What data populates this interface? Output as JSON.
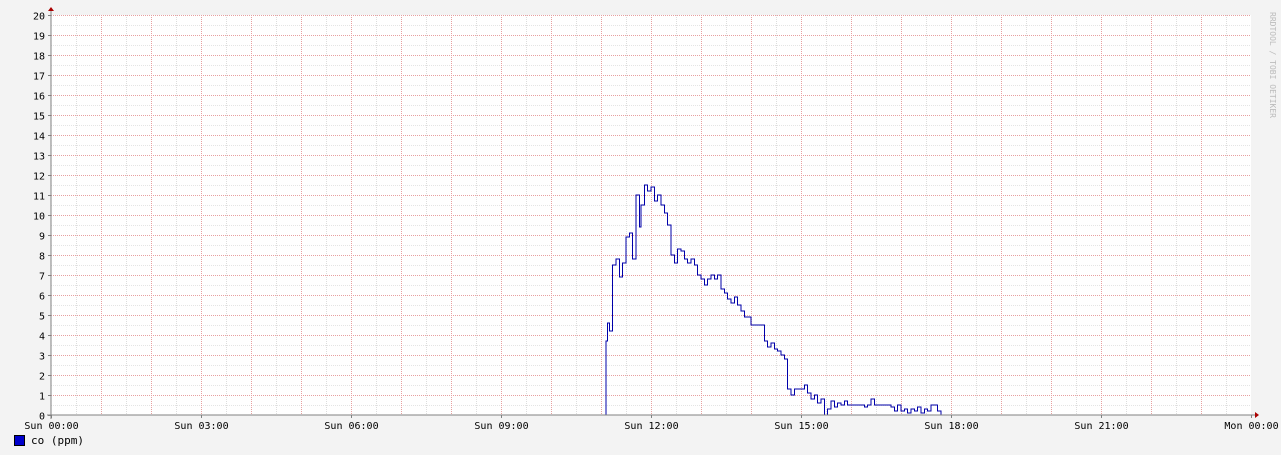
{
  "watermark": "RRDTOOL / TOBI OETIKER",
  "legend": {
    "label": "co (ppm)"
  },
  "colors": {
    "background": "#f3f3f3",
    "plot": "#ffffff",
    "line": "#0000aa",
    "grid_minor": "#dddddd",
    "grid_major": "#e7a0a0",
    "axis": "#808080",
    "arrow": "#aa0000"
  },
  "chart_data": {
    "type": "line",
    "step": true,
    "xlabel": "",
    "ylabel": "",
    "xlim": [
      0,
      24
    ],
    "ylim": [
      0,
      20
    ],
    "grid": true,
    "legend_position": "bottom-left",
    "x_ticks": [
      {
        "hour": 0,
        "label": "Sun 00:00"
      },
      {
        "hour": 3,
        "label": "Sun 03:00"
      },
      {
        "hour": 6,
        "label": "Sun 06:00"
      },
      {
        "hour": 9,
        "label": "Sun 09:00"
      },
      {
        "hour": 12,
        "label": "Sun 12:00"
      },
      {
        "hour": 15,
        "label": "Sun 15:00"
      },
      {
        "hour": 18,
        "label": "Sun 18:00"
      },
      {
        "hour": 21,
        "label": "Sun 21:00"
      },
      {
        "hour": 24,
        "label": "Mon 00:00"
      }
    ],
    "y_ticks": [
      0,
      1,
      2,
      3,
      4,
      5,
      6,
      7,
      8,
      9,
      10,
      11,
      12,
      13,
      14,
      15,
      16,
      17,
      18,
      19,
      20
    ],
    "series": [
      {
        "name": "co (ppm)",
        "x": [
          1.4,
          11.1,
          11.13,
          11.17,
          11.23,
          11.3,
          11.37,
          11.43,
          11.5,
          11.57,
          11.63,
          11.7,
          11.77,
          11.8,
          11.87,
          11.93,
          12.0,
          12.07,
          12.13,
          12.2,
          12.27,
          12.33,
          12.4,
          12.47,
          12.53,
          12.6,
          12.67,
          12.73,
          12.8,
          12.87,
          12.93,
          13.0,
          13.07,
          13.13,
          13.2,
          13.27,
          13.33,
          13.4,
          13.47,
          13.53,
          13.6,
          13.67,
          13.73,
          13.8,
          13.87,
          14.0,
          14.27,
          14.33,
          14.4,
          14.47,
          14.53,
          14.6,
          14.67,
          14.73,
          14.8,
          14.87,
          15.07,
          15.13,
          15.2,
          15.27,
          15.33,
          15.4,
          15.47,
          15.53,
          15.6,
          15.67,
          15.73,
          15.8,
          15.87,
          15.93,
          16.2,
          16.27,
          16.33,
          16.4,
          16.47,
          16.53,
          16.6,
          16.67,
          16.73,
          16.8,
          16.87,
          16.93,
          17.0,
          17.07,
          17.13,
          17.2,
          17.27,
          17.33,
          17.4,
          17.47,
          17.53,
          17.6,
          17.67,
          17.73,
          17.8
        ],
        "y": [
          0,
          3.7,
          4.6,
          4.2,
          7.5,
          7.8,
          6.9,
          7.6,
          8.9,
          9.1,
          7.8,
          11.0,
          9.4,
          10.5,
          11.5,
          11.2,
          11.4,
          10.7,
          11.0,
          10.5,
          10.1,
          9.5,
          8.0,
          7.6,
          8.3,
          8.2,
          7.8,
          7.6,
          7.8,
          7.5,
          7.0,
          6.8,
          6.5,
          6.8,
          7.0,
          6.8,
          7.0,
          6.3,
          6.1,
          5.8,
          5.6,
          5.9,
          5.5,
          5.2,
          4.9,
          4.5,
          3.7,
          3.4,
          3.6,
          3.3,
          3.2,
          3.0,
          2.8,
          1.3,
          1.0,
          1.3,
          1.5,
          1.1,
          0.8,
          1.0,
          0.6,
          0.8,
          0.0,
          0.3,
          0.7,
          0.4,
          0.6,
          0.5,
          0.7,
          0.5,
          0.5,
          0.4,
          0.5,
          0.8,
          0.5,
          0.5,
          0.5,
          0.5,
          0.5,
          0.4,
          0.2,
          0.5,
          0.2,
          0.3,
          0.1,
          0.3,
          0.2,
          0.4,
          0.1,
          0.3,
          0.2,
          0.5,
          0.5,
          0.2,
          0.0
        ]
      }
    ]
  }
}
